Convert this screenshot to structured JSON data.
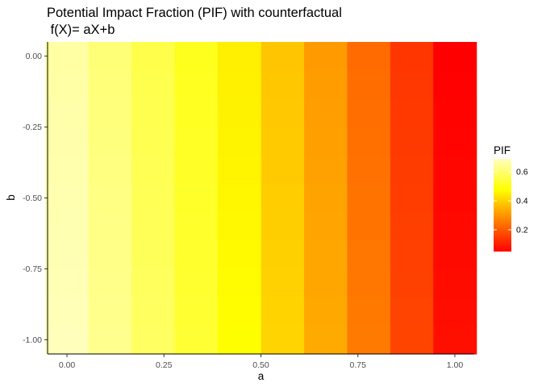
{
  "chart_data": {
    "type": "heatmap",
    "title_line1": "Potential Impact Fraction (PIF) with counterfactual",
    "title_line2": " f(X)= aX+b",
    "xlabel": "a",
    "ylabel": "b",
    "xlim": [
      -0.05,
      1.05
    ],
    "ylim": [
      -1.05,
      0.05
    ],
    "x_ticks": [
      0,
      0.25,
      0.5,
      0.75,
      1
    ],
    "x_tick_labels": [
      "0.00",
      "0.25",
      "0.50",
      "0.75",
      "1.00"
    ],
    "y_ticks": [
      0,
      -0.25,
      -0.5,
      -0.75,
      -1
    ],
    "y_tick_labels": [
      "0.00",
      "-0.25",
      "-0.50",
      "-0.75",
      "-1.00"
    ],
    "x_cells": [
      0.0,
      0.111,
      0.222,
      0.333,
      0.444,
      0.556,
      0.667,
      0.778,
      0.889,
      1.0
    ],
    "y_cells": [
      0.0,
      -0.1,
      -0.2,
      -0.3,
      -0.4,
      -0.5,
      -0.6,
      -0.7,
      -0.8,
      -0.9,
      -1.0
    ],
    "pif_base": [
      0.66,
      0.61,
      0.56,
      0.51,
      0.45,
      0.38,
      0.31,
      0.23,
      0.14,
      0.05
    ],
    "pif_b_slope": 0.025,
    "gradient_colors": [
      "#ff0000",
      "#ff7f00",
      "#ffff00",
      "#ffffbf"
    ],
    "value_range": [
      0.05,
      0.69
    ],
    "legend": {
      "title": "PIF",
      "ticks": [
        0.2,
        0.4,
        0.6
      ],
      "tick_labels": [
        "0.2",
        "0.4",
        "0.6"
      ]
    }
  }
}
